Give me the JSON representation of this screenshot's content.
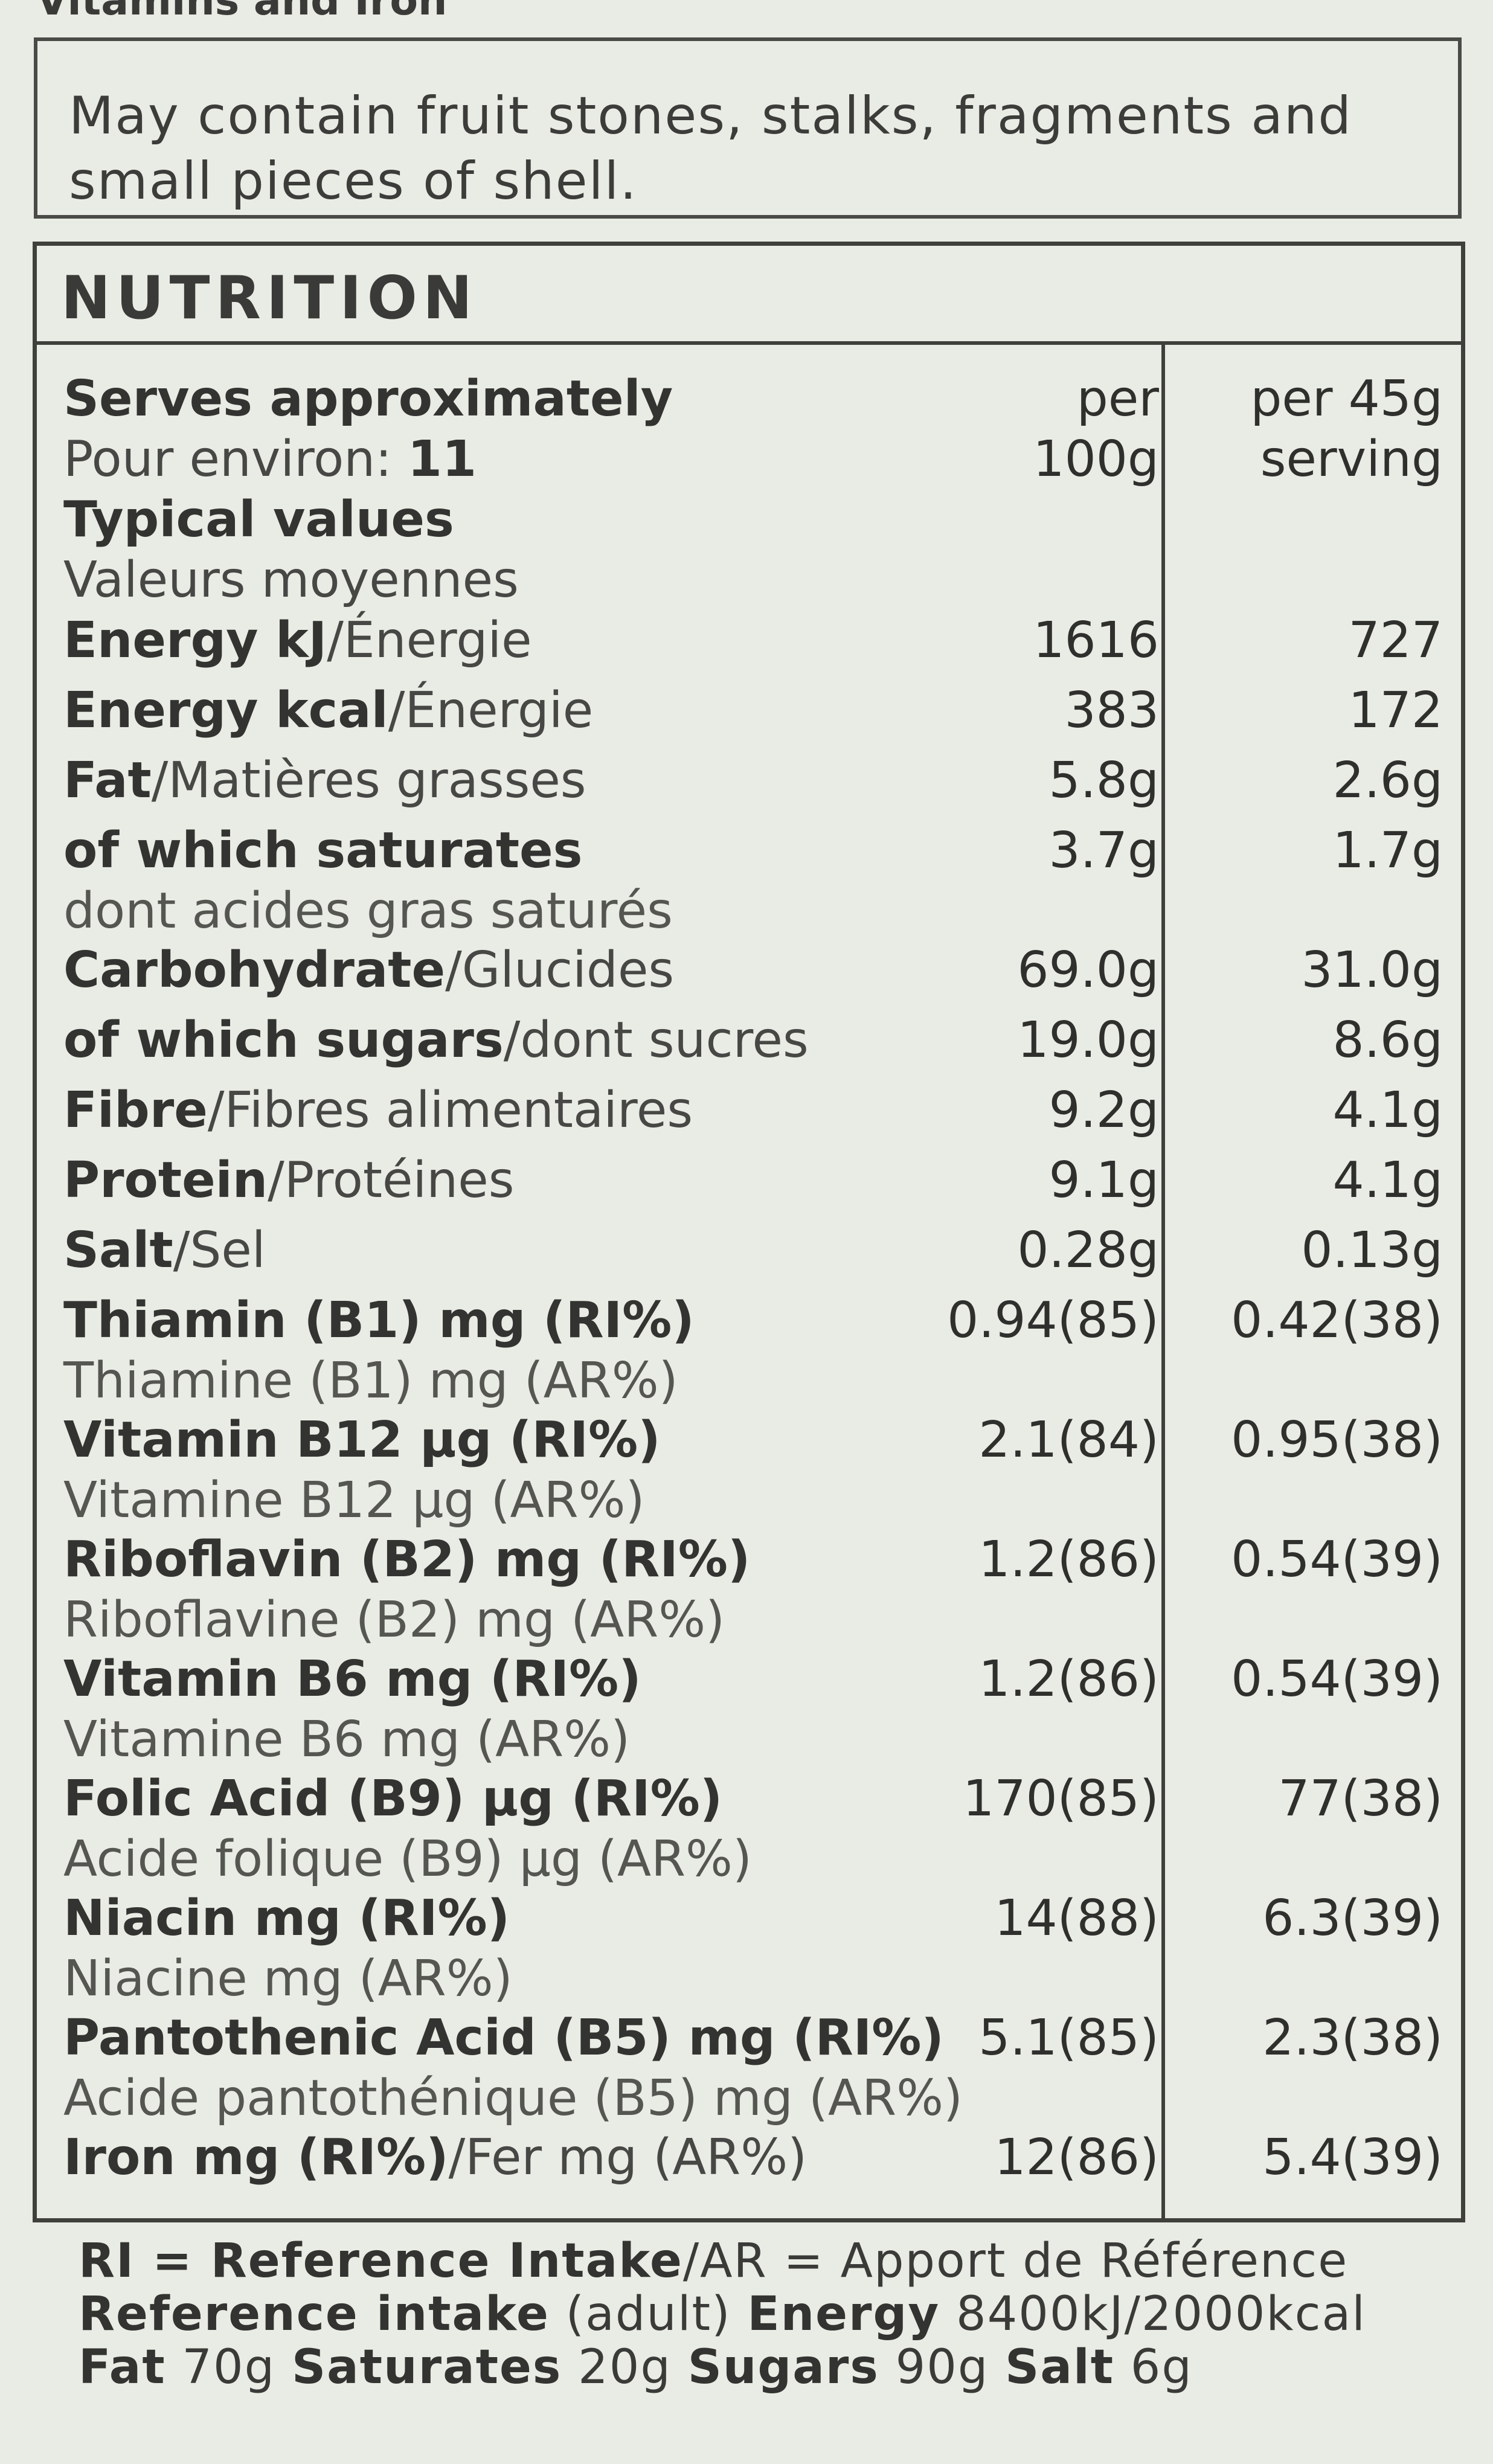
{
  "top_cut_text": "Vitamins and Iron",
  "warning": "May contain fruit stones, stalks, fragments and small pieces of shell.",
  "nutrition": {
    "title": "NUTRITION",
    "header": {
      "serves_en": "Serves approximately",
      "serves_fr": "Pour environ: ",
      "serves_count": "11",
      "typical_en": "Typical values",
      "typical_fr": "Valeurs moyennes",
      "col1_line1": "per",
      "col1_line2": "100g",
      "col2_line1": "per 45g",
      "col2_line2": "serving"
    },
    "rows": [
      {
        "en": "Energy kJ",
        "fr": "/Énergie",
        "sub": "",
        "per100": "1616",
        "perServing": "727"
      },
      {
        "en": "Energy kcal",
        "fr": "/Énergie",
        "sub": "",
        "per100": "383",
        "perServing": "172"
      },
      {
        "en": "Fat",
        "fr": "/Matières grasses",
        "sub": "",
        "per100": "5.8g",
        "perServing": "2.6g"
      },
      {
        "en": "of which saturates",
        "fr": "",
        "sub": "dont acides gras saturés",
        "per100": "3.7g",
        "perServing": "1.7g"
      },
      {
        "en": "Carbohydrate",
        "fr": "/Glucides",
        "sub": "",
        "per100": "69.0g",
        "perServing": "31.0g"
      },
      {
        "en": "of which sugars",
        "fr": "/dont sucres",
        "sub": "",
        "per100": "19.0g",
        "perServing": "8.6g"
      },
      {
        "en": "Fibre",
        "fr": "/Fibres alimentaires",
        "sub": "",
        "per100": "9.2g",
        "perServing": "4.1g"
      },
      {
        "en": "Protein",
        "fr": "/Protéines",
        "sub": "",
        "per100": "9.1g",
        "perServing": "4.1g"
      },
      {
        "en": "Salt",
        "fr": "/Sel",
        "sub": "",
        "per100": "0.28g",
        "perServing": "0.13g"
      },
      {
        "en": "Thiamin (B1) mg (RI%)",
        "fr": "",
        "sub": "Thiamine (B1) mg (AR%)",
        "per100": "0.94(85)",
        "perServing": "0.42(38)"
      },
      {
        "en": "Vitamin B12 µg (RI%)",
        "fr": "",
        "sub": "Vitamine B12 µg (AR%)",
        "per100": "2.1(84)",
        "perServing": "0.95(38)"
      },
      {
        "en": "Riboflavin (B2) mg (RI%)",
        "fr": "",
        "sub": "Riboflavine (B2) mg (AR%)",
        "per100": "1.2(86)",
        "perServing": "0.54(39)"
      },
      {
        "en": "Vitamin B6 mg (RI%)",
        "fr": "",
        "sub": "Vitamine B6 mg (AR%)",
        "per100": "1.2(86)",
        "perServing": "0.54(39)"
      },
      {
        "en": "Folic Acid (B9) µg (RI%)",
        "fr": "",
        "sub": "Acide folique (B9) µg (AR%)",
        "per100": "170(85)",
        "perServing": "77(38)"
      },
      {
        "en": "Niacin mg (RI%)",
        "fr": "",
        "sub": "Niacine mg (AR%)",
        "per100": "14(88)",
        "perServing": "6.3(39)"
      },
      {
        "en": "Pantothenic Acid (B5) mg (RI%)",
        "fr": "",
        "sub": "Acide pantothénique (B5) mg (AR%)",
        "per100": "5.1(85)",
        "perServing": "2.3(38)"
      },
      {
        "en": "Iron mg (RI%)",
        "fr": "/Fer mg (AR%)",
        "sub": "",
        "per100": "12(86)",
        "perServing": "5.4(39)"
      }
    ]
  },
  "footer": {
    "line1_bold": "RI = Reference Intake",
    "line1_rest": "/AR = Apport de Référence",
    "line2_bold_a": "Reference intake",
    "line2_mid": " (adult) ",
    "line2_bold_b": "Energy",
    "line2_rest": " 8400kJ/2000kcal",
    "line3_fat_label": "Fat",
    "line3_fat_val": " 70g ",
    "line3_sat_label": "Saturates",
    "line3_sat_val": " 20g ",
    "line3_sug_label": "Sugars",
    "line3_sug_val": " 90g ",
    "line3_salt_label": "Salt",
    "line3_salt_val": " 6g"
  }
}
